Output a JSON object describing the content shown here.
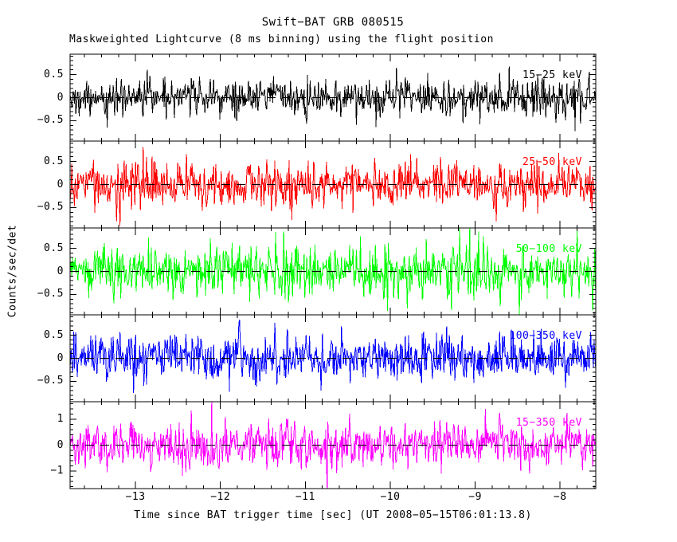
{
  "chart_data": {
    "type": "line",
    "title": "Swift−BAT GRB 080515",
    "subtitle": "Maskweighted Lightcurve (8 ms binning) using the flight position",
    "xlabel": "Time since BAT trigger time [sec] (UT 2008−05−15T06:01:13.8)",
    "ylabel": "Counts/sec/det",
    "x_range": [
      -13.77,
      -7.58
    ],
    "x_major_ticks": [
      -13,
      -12,
      -11,
      -10,
      -9,
      -8
    ],
    "x_tick_labels": [
      "−13",
      "−12",
      "−11",
      "−10",
      "−9",
      "−8"
    ],
    "x_minor_step": 0.2,
    "bin_seconds": 0.008,
    "grid": false,
    "legend_position": "inside-top-right-of-each-panel",
    "zero_line": {
      "style": "dashed",
      "color": "#000000",
      "y": 0
    },
    "panels": [
      {
        "band_label": "15−25 keV",
        "color": "#000000",
        "y_range": [
          -0.94,
          0.94
        ],
        "y_major_ticks": [
          0.5,
          0,
          -0.5
        ],
        "y_tick_labels": [
          "0.5",
          "0",
          "−0.5"
        ],
        "y_minor_step": 0.1,
        "noise_mean": 0,
        "noise_sigma": 0.21,
        "seed": 80515
      },
      {
        "band_label": "25−50 keV",
        "color": "#ff0000",
        "y_range": [
          -0.94,
          0.94
        ],
        "y_major_ticks": [
          0.5,
          0,
          -0.5
        ],
        "y_tick_labels": [
          "0.5",
          "0",
          "−0.5"
        ],
        "y_minor_step": 0.1,
        "noise_mean": 0,
        "noise_sigma": 0.25,
        "seed": 25050
      },
      {
        "band_label": "50−100 keV",
        "color": "#00ff00",
        "y_range": [
          -0.94,
          0.94
        ],
        "y_major_ticks": [
          0.5,
          0,
          -0.5
        ],
        "y_tick_labels": [
          "0.5",
          "0",
          "−0.5"
        ],
        "y_minor_step": 0.1,
        "noise_mean": 0,
        "noise_sigma": 0.27,
        "seed": 50100
      },
      {
        "band_label": "100−350 keV",
        "color": "#0000ff",
        "y_range": [
          -0.94,
          0.94
        ],
        "y_major_ticks": [
          0.5,
          0,
          -0.5
        ],
        "y_tick_labels": [
          "0.5",
          "0",
          "−0.5"
        ],
        "y_minor_step": 0.1,
        "noise_mean": 0,
        "noise_sigma": 0.25,
        "seed": 100350
      },
      {
        "band_label": "15−350 keV",
        "color": "#ff00ff",
        "y_range": [
          -1.68,
          1.68
        ],
        "y_major_ticks": [
          1,
          0,
          -1
        ],
        "y_tick_labels": [
          "1",
          "0",
          "−1"
        ],
        "y_minor_step": 0.2,
        "noise_mean": 0,
        "noise_sigma": 0.42,
        "seed": 15350
      }
    ]
  }
}
